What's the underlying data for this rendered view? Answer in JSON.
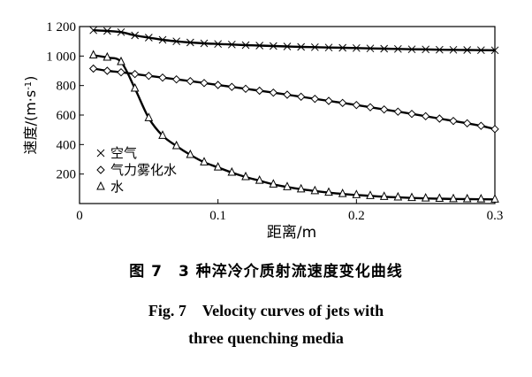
{
  "chart_data": {
    "type": "line",
    "xlabel": "距离/m",
    "ylabel": "速度/(m·s⁻¹)",
    "xlim": [
      0,
      0.3
    ],
    "ylim": [
      0,
      1200
    ],
    "xticks": [
      {
        "value": 0,
        "label": "0"
      },
      {
        "value": 0.1,
        "label": "0.1"
      },
      {
        "value": 0.2,
        "label": "0.2"
      },
      {
        "value": 0.3,
        "label": "0.3"
      }
    ],
    "yticks": [
      {
        "value": 200,
        "label": "200"
      },
      {
        "value": 400,
        "label": "400"
      },
      {
        "value": 600,
        "label": "600"
      },
      {
        "value": 800,
        "label": "800"
      },
      {
        "value": 1000,
        "label": "1 000"
      },
      {
        "value": 1200,
        "label": "1 200"
      }
    ],
    "grid": false,
    "legend_position": "bottom-left",
    "series": [
      {
        "name": "空气",
        "marker": "x",
        "x": [
          0.01,
          0.02,
          0.03,
          0.04,
          0.05,
          0.06,
          0.07,
          0.08,
          0.09,
          0.1,
          0.11,
          0.12,
          0.13,
          0.14,
          0.15,
          0.16,
          0.17,
          0.18,
          0.19,
          0.2,
          0.21,
          0.22,
          0.23,
          0.24,
          0.25,
          0.26,
          0.27,
          0.28,
          0.29,
          0.3
        ],
        "y": [
          1175,
          1170,
          1162,
          1140,
          1125,
          1110,
          1100,
          1092,
          1086,
          1082,
          1078,
          1074,
          1071,
          1068,
          1065,
          1062,
          1060,
          1058,
          1056,
          1054,
          1052,
          1050,
          1048,
          1046,
          1045,
          1043,
          1042,
          1041,
          1040,
          1039
        ]
      },
      {
        "name": "气力雾化水",
        "marker": "diamond",
        "x": [
          0.01,
          0.02,
          0.03,
          0.04,
          0.05,
          0.06,
          0.07,
          0.08,
          0.09,
          0.1,
          0.11,
          0.12,
          0.13,
          0.14,
          0.15,
          0.16,
          0.17,
          0.18,
          0.19,
          0.2,
          0.21,
          0.22,
          0.23,
          0.24,
          0.25,
          0.26,
          0.27,
          0.28,
          0.29,
          0.3
        ],
        "y": [
          915,
          900,
          890,
          878,
          866,
          854,
          842,
          830,
          817,
          804,
          791,
          778,
          765,
          752,
          738,
          724,
          710,
          696,
          682,
          668,
          653,
          638,
          623,
          608,
          592,
          576,
          560,
          544,
          527,
          505
        ]
      },
      {
        "name": "水",
        "marker": "triangle",
        "x": [
          0.01,
          0.02,
          0.03,
          0.04,
          0.05,
          0.06,
          0.07,
          0.08,
          0.09,
          0.1,
          0.11,
          0.12,
          0.13,
          0.14,
          0.15,
          0.16,
          0.17,
          0.18,
          0.19,
          0.2,
          0.21,
          0.22,
          0.23,
          0.24,
          0.25,
          0.26,
          0.27,
          0.28,
          0.29,
          0.3
        ],
        "y": [
          1005,
          990,
          960,
          780,
          580,
          460,
          390,
          330,
          280,
          245,
          210,
          180,
          155,
          130,
          112,
          97,
          85,
          74,
          65,
          58,
          52,
          46,
          42,
          38,
          35,
          33,
          31,
          30,
          29,
          28
        ]
      }
    ]
  },
  "caption": {
    "cn": "图 7　3 种淬冷介质射流速度变化曲线",
    "en_line1": "Fig. 7　Velocity curves of jets with",
    "en_line2": "three quenching media"
  }
}
